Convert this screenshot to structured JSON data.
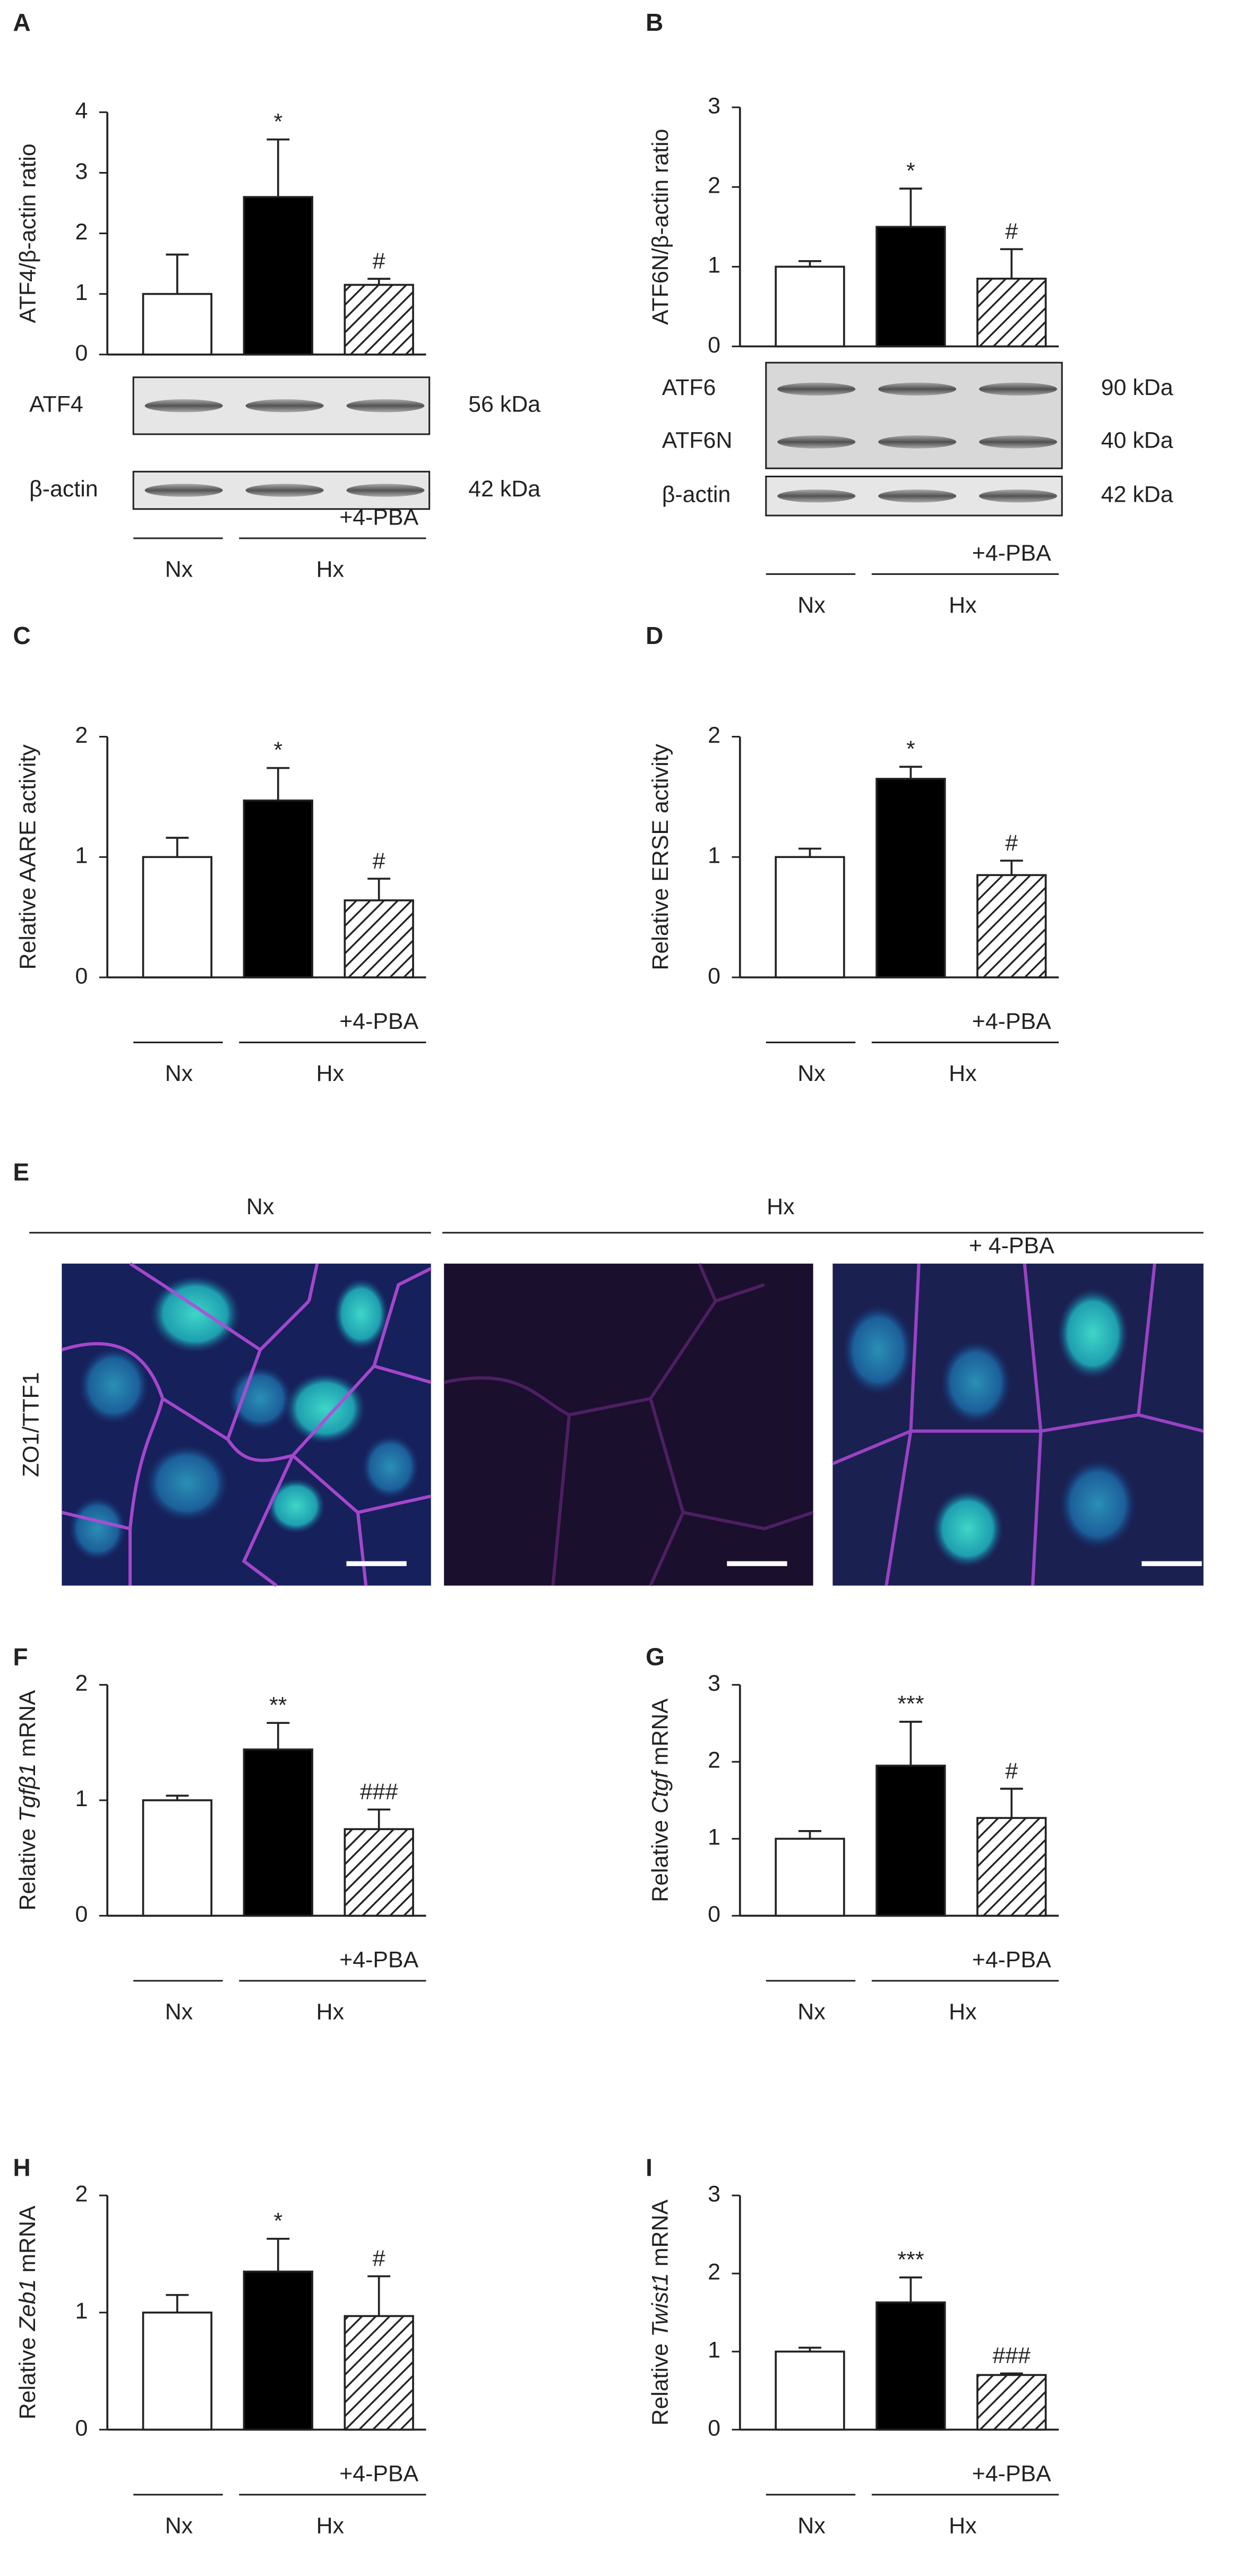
{
  "chart_data": [
    {
      "panel": "A",
      "type": "bar",
      "ylabel": "ATF4/β-actin ratio",
      "ylim": [
        0,
        4
      ],
      "yticks": [
        0,
        1,
        2,
        3,
        4
      ],
      "values": [
        1,
        2.6,
        1.15
      ],
      "errors": [
        0.65,
        0.95,
        0.1
      ],
      "annotations": [
        null,
        "*",
        "#"
      ],
      "bar_styles": [
        "open",
        "filled",
        "hatched"
      ],
      "group_labels": [
        "Nx",
        "Hx"
      ],
      "treatment_label": "+4-PBA",
      "blot": [
        {
          "bands": [
            "ATF4"
          ],
          "sizes": [
            "56 kDa"
          ]
        },
        {
          "bands": [
            "β-actin"
          ],
          "sizes": [
            "42 kDa"
          ]
        }
      ]
    },
    {
      "panel": "B",
      "type": "bar",
      "ylabel": "ATF6N/β-actin ratio",
      "ylim": [
        0,
        3
      ],
      "yticks": [
        0,
        1,
        2,
        3
      ],
      "values": [
        1,
        1.5,
        0.85
      ],
      "errors": [
        0.07,
        0.48,
        0.37
      ],
      "annotations": [
        null,
        "*",
        "#"
      ],
      "bar_styles": [
        "open",
        "filled",
        "hatched"
      ],
      "group_labels": [
        "Nx",
        "Hx"
      ],
      "treatment_label": "+4-PBA",
      "blot": [
        {
          "bands": [
            "ATF6",
            "ATF6N"
          ],
          "sizes": [
            "90 kDa",
            "40 kDa"
          ]
        },
        {
          "bands": [
            "β-actin"
          ],
          "sizes": [
            "42 kDa"
          ]
        }
      ]
    },
    {
      "panel": "C",
      "type": "bar",
      "ylabel": "Relative AARE activity",
      "ylim": [
        0,
        2
      ],
      "yticks": [
        0,
        1,
        2
      ],
      "values": [
        1,
        1.47,
        0.64
      ],
      "errors": [
        0.16,
        0.27,
        0.18
      ],
      "annotations": [
        null,
        "*",
        "#"
      ],
      "bar_styles": [
        "open",
        "filled",
        "hatched"
      ],
      "group_labels": [
        "Nx",
        "Hx"
      ],
      "treatment_label": "+4-PBA"
    },
    {
      "panel": "D",
      "type": "bar",
      "ylabel": "Relative ERSE activity",
      "ylim": [
        0,
        2
      ],
      "yticks": [
        0,
        1,
        2
      ],
      "values": [
        1,
        1.65,
        0.85
      ],
      "errors": [
        0.07,
        0.1,
        0.12
      ],
      "annotations": [
        null,
        "*",
        "#"
      ],
      "bar_styles": [
        "open",
        "filled",
        "hatched"
      ],
      "group_labels": [
        "Nx",
        "Hx"
      ],
      "treatment_label": "+4-PBA"
    },
    {
      "panel": "F",
      "type": "bar",
      "ylabel": {
        "before": "Relative",
        "gene": "Tgfβ1",
        "after": "mRNA"
      },
      "ylim": [
        0,
        2
      ],
      "yticks": [
        0,
        1,
        2
      ],
      "values": [
        1,
        1.44,
        0.75
      ],
      "errors": [
        0.04,
        0.23,
        0.17
      ],
      "annotations": [
        null,
        "**",
        "###"
      ],
      "bar_styles": [
        "open",
        "filled",
        "hatched"
      ],
      "group_labels": [
        "Nx",
        "Hx"
      ],
      "treatment_label": "+4-PBA"
    },
    {
      "panel": "G",
      "type": "bar",
      "ylabel": {
        "before": "Relative",
        "gene": "Ctgf",
        "after": "mRNA"
      },
      "ylim": [
        0,
        3
      ],
      "yticks": [
        0,
        1,
        2,
        3
      ],
      "values": [
        1,
        1.95,
        1.27
      ],
      "errors": [
        0.1,
        0.57,
        0.38
      ],
      "annotations": [
        null,
        "***",
        "#"
      ],
      "bar_styles": [
        "open",
        "filled",
        "hatched"
      ],
      "group_labels": [
        "Nx",
        "Hx"
      ],
      "treatment_label": "+4-PBA"
    },
    {
      "panel": "H",
      "type": "bar",
      "ylabel": {
        "before": "Relative",
        "gene": "Zeb1",
        "after": "mRNA"
      },
      "ylim": [
        0,
        2
      ],
      "yticks": [
        0,
        1,
        2
      ],
      "values": [
        1,
        1.35,
        0.97
      ],
      "errors": [
        0.15,
        0.28,
        0.34
      ],
      "annotations": [
        null,
        "*",
        "#"
      ],
      "bar_styles": [
        "open",
        "filled",
        "hatched"
      ],
      "group_labels": [
        "Nx",
        "Hx"
      ],
      "treatment_label": "+4-PBA"
    },
    {
      "panel": "I",
      "type": "bar",
      "ylabel": {
        "before": "Relative",
        "gene": "Twist1",
        "after": "mRNA"
      },
      "ylim": [
        0,
        3
      ],
      "yticks": [
        0,
        1,
        2,
        3
      ],
      "values": [
        1,
        1.63,
        0.7
      ],
      "errors": [
        0.05,
        0.32,
        0.02
      ],
      "annotations": [
        null,
        "***",
        "###"
      ],
      "bar_styles": [
        "open",
        "filled",
        "hatched"
      ],
      "group_labels": [
        "Nx",
        "Hx"
      ],
      "treatment_label": "+4-PBA"
    }
  ],
  "micrograph": {
    "panel": "E",
    "stain_label": "ZO1/TTF1",
    "groups": [
      "Nx",
      "Hx"
    ],
    "treatment_label": "+ 4-PBA"
  }
}
